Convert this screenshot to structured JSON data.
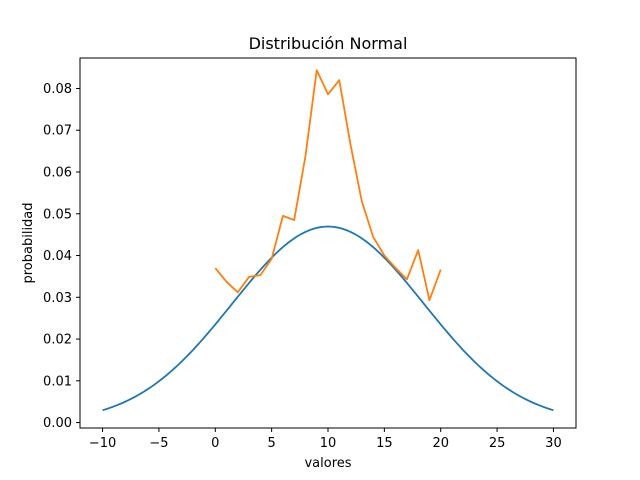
{
  "chart_data": {
    "type": "line",
    "title": "Distribución Normal",
    "xlabel": "valores",
    "ylabel": "probabilidad",
    "xlim": [
      -12,
      32
    ],
    "ylim": [
      -0.0013,
      0.0873
    ],
    "grid": false,
    "x_ticks": [
      -10,
      -5,
      0,
      5,
      10,
      15,
      20,
      25,
      30
    ],
    "x_tick_labels": [
      "−10",
      "−5",
      "0",
      "5",
      "10",
      "15",
      "20",
      "25",
      "30"
    ],
    "y_ticks": [
      0.0,
      0.01,
      0.02,
      0.03,
      0.04,
      0.05,
      0.06,
      0.07,
      0.08
    ],
    "y_tick_labels": [
      "0.00",
      "0.01",
      "0.02",
      "0.03",
      "0.04",
      "0.05",
      "0.06",
      "0.07",
      "0.08"
    ],
    "series": [
      {
        "color": "#1f77b4",
        "kind": "normal_pdf",
        "mean": 10,
        "std": 8.5,
        "x_range": [
          -10,
          30
        ]
      },
      {
        "color": "#ff7f0e",
        "x": [
          0,
          1,
          2,
          3,
          4,
          5,
          6,
          7,
          8,
          9,
          10,
          11,
          12,
          13,
          14,
          15,
          16,
          17,
          18,
          19,
          20
        ],
        "values": [
          0.037,
          0.0337,
          0.0312,
          0.0349,
          0.0353,
          0.0392,
          0.0495,
          0.0485,
          0.0638,
          0.0844,
          0.0786,
          0.082,
          0.0665,
          0.053,
          0.0445,
          0.04,
          0.037,
          0.0343,
          0.0413,
          0.0293,
          0.0366
        ]
      }
    ]
  }
}
